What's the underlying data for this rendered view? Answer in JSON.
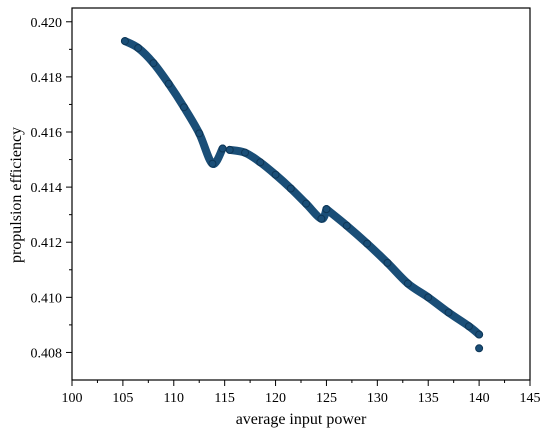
{
  "chart_data": {
    "type": "scatter",
    "title": "",
    "xlabel": "average input power",
    "ylabel": "propulsion efficiency",
    "xlim": [
      100,
      145
    ],
    "ylim": [
      0.407,
      0.4205
    ],
    "xticks": [
      "100",
      "105",
      "110",
      "115",
      "120",
      "125",
      "130",
      "135",
      "140",
      "145"
    ],
    "yticks": [
      "0.408",
      "0.410",
      "0.412",
      "0.414",
      "0.416",
      "0.418",
      "0.420"
    ],
    "grid": false,
    "marker_color": "#1a4e77",
    "marker_edge_color": "#0e3656",
    "series": [
      {
        "x": [
          105.2,
          106.5,
          108.0,
          109.5,
          111.0,
          112.5,
          113.8,
          114.8
        ],
        "y": [
          0.4193,
          0.41905,
          0.4185,
          0.41775,
          0.4169,
          0.41595,
          0.41485,
          0.4154
        ]
      },
      {
        "x": [
          115.5,
          117.0,
          118.5,
          120.0,
          121.5,
          123.0,
          124.5,
          125.0
        ],
        "y": [
          0.41535,
          0.41525,
          0.4149,
          0.41445,
          0.41395,
          0.4134,
          0.41285,
          0.4132
        ]
      },
      {
        "x": [
          125.0,
          127.0,
          129.0,
          131.0,
          133.0,
          135.0,
          137.0,
          139.0,
          140.0
        ],
        "y": [
          0.4132,
          0.4126,
          0.41195,
          0.41125,
          0.4105,
          0.41,
          0.40945,
          0.40895,
          0.40865
        ]
      },
      {
        "x": [
          140.0
        ],
        "y": [
          0.40815
        ]
      }
    ]
  }
}
